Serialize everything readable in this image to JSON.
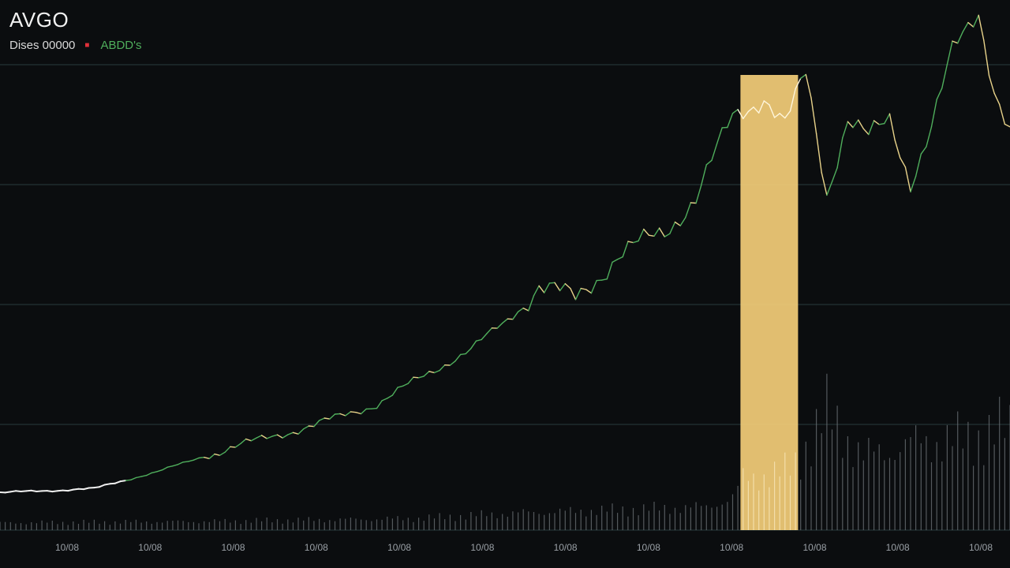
{
  "header": {
    "ticker": "AVGO",
    "price_label": "Dises 00000",
    "marker": "■",
    "change": "ABDD's"
  },
  "colors": {
    "background": "#0b0d0f",
    "gridline": "#2a3a3c",
    "line_up": "#4fae5c",
    "line_down": "#e8d28a",
    "highlight": "#f4cd78",
    "volume": "#6d7378",
    "marker": "#e0303a"
  },
  "chart_data": {
    "type": "line",
    "title": "AVGO",
    "xlabel": "",
    "ylabel": "",
    "grid": true,
    "x_ticks": [
      "10/08",
      "10/08",
      "10/08",
      "10/08",
      "10/08",
      "10/08",
      "10/08",
      "10/08",
      "10/08",
      "10/08",
      "10/08",
      "10/08"
    ],
    "highlight": {
      "from_index": 142,
      "to_index": 152,
      "color": "#f4cd78"
    },
    "ylim": [
      0,
      100
    ],
    "volume_ylim": [
      0,
      100
    ],
    "price_anchors": [
      [
        0,
        1
      ],
      [
        18,
        2
      ],
      [
        30,
        6
      ],
      [
        45,
        12
      ],
      [
        60,
        17
      ],
      [
        72,
        22
      ],
      [
        80,
        28
      ],
      [
        90,
        35
      ],
      [
        98,
        43
      ],
      [
        103,
        50
      ],
      [
        110,
        47
      ],
      [
        118,
        57
      ],
      [
        127,
        63
      ],
      [
        133,
        71
      ],
      [
        140,
        90
      ],
      [
        146,
        95
      ],
      [
        150,
        88
      ],
      [
        154,
        100
      ],
      [
        158,
        72
      ],
      [
        162,
        90
      ],
      [
        166,
        85
      ],
      [
        170,
        89
      ],
      [
        174,
        75
      ],
      [
        178,
        88
      ],
      [
        182,
        105
      ],
      [
        187,
        115
      ],
      [
        190,
        97
      ],
      [
        193,
        87
      ]
    ],
    "volume_anchors": [
      [
        0,
        5
      ],
      [
        40,
        6
      ],
      [
        80,
        8
      ],
      [
        100,
        12
      ],
      [
        120,
        14
      ],
      [
        135,
        16
      ],
      [
        140,
        22
      ],
      [
        142,
        35
      ],
      [
        150,
        40
      ],
      [
        152,
        45
      ],
      [
        158,
        80
      ],
      [
        165,
        50
      ],
      [
        175,
        60
      ],
      [
        185,
        62
      ],
      [
        193,
        70
      ]
    ]
  }
}
